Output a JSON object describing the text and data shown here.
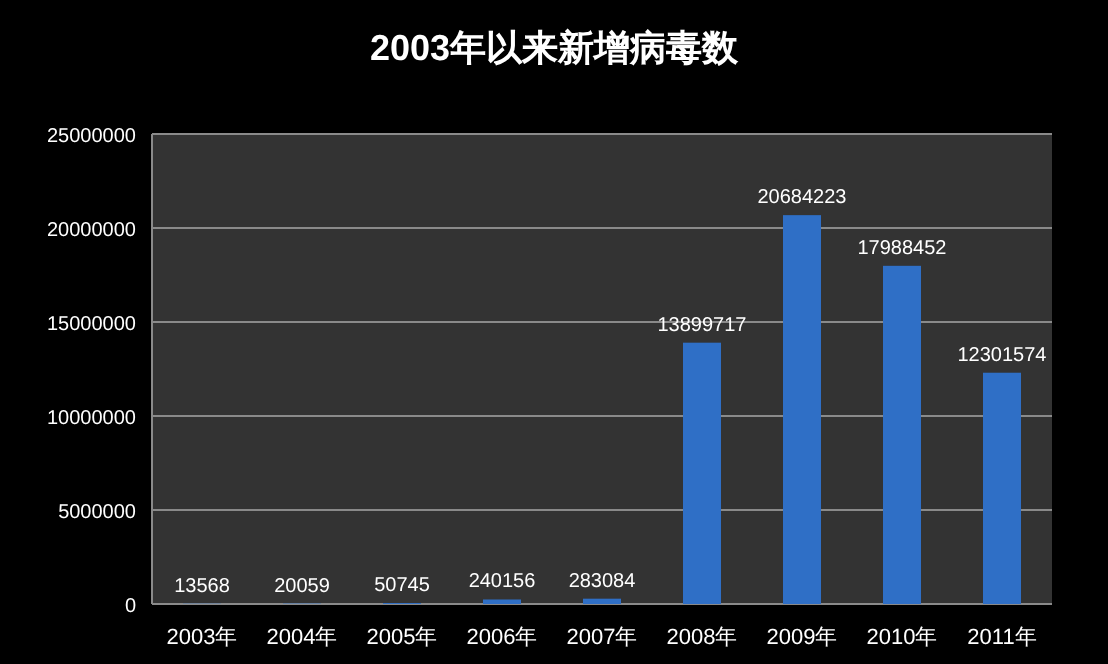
{
  "chart_data": {
    "type": "bar",
    "title": "2003年以来新增病毒数",
    "categories": [
      "2003年",
      "2004年",
      "2005年",
      "2006年",
      "2007年",
      "2008年",
      "2009年",
      "2010年",
      "2011年"
    ],
    "values": [
      13568,
      20059,
      50745,
      240156,
      283084,
      13899717,
      20684223,
      17988452,
      12301574
    ],
    "color": "#2f6fc6",
    "ylim": [
      0,
      25000000
    ],
    "yticks": [
      0,
      5000000,
      10000000,
      15000000,
      20000000,
      25000000
    ],
    "grid": "y",
    "data_labels": true
  }
}
